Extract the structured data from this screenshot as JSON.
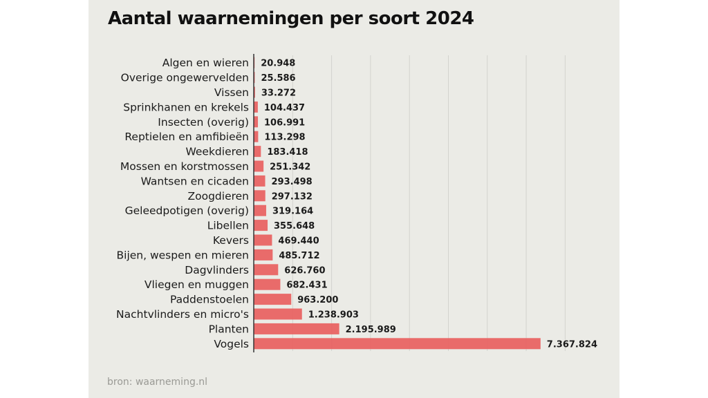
{
  "chart_data": {
    "type": "bar",
    "orientation": "horizontal",
    "title": "Aantal waarnemingen per soort 2024",
    "xlabel": "",
    "ylabel": "",
    "source": "bron: waarneming.nl",
    "categories": [
      "Algen en wieren",
      "Overige ongewervelden",
      "Vissen",
      "Sprinkhanen en krekels",
      "Insecten (overig)",
      "Reptielen en amfibieën",
      "Weekdieren",
      "Mossen en korstmossen",
      "Wantsen en cicaden",
      "Zoogdieren",
      "Geleedpotigen (overig)",
      "Libellen",
      "Kevers",
      "Bijen, wespen en mieren",
      "Dagvlinders",
      "Vliegen en muggen",
      "Paddenstoelen",
      "Nachtvlinders en micro's",
      "Planten",
      "Vogels"
    ],
    "values": [
      20948,
      25586,
      33272,
      104437,
      106991,
      113298,
      183418,
      251342,
      293498,
      297132,
      319164,
      355648,
      469440,
      485712,
      626760,
      682431,
      963200,
      1238903,
      2195989,
      7367824
    ],
    "value_labels": [
      "20.948",
      "25.586",
      "33.272",
      "104.437",
      "106.991",
      "113.298",
      "183.418",
      "251.342",
      "293.498",
      "297.132",
      "319.164",
      "355.648",
      "469.440",
      "485.712",
      "626.760",
      "682.431",
      "963.200",
      "1.238.903",
      "2.195.989",
      "7.367.824"
    ],
    "xlim": [
      0,
      8000000
    ],
    "gridlines": [
      1000000,
      2000000,
      3000000,
      4000000,
      5000000,
      6000000,
      7000000,
      8000000
    ],
    "grid": true,
    "tick_labels_shown": false,
    "legend": "none",
    "bar_color": "#e8605f"
  }
}
